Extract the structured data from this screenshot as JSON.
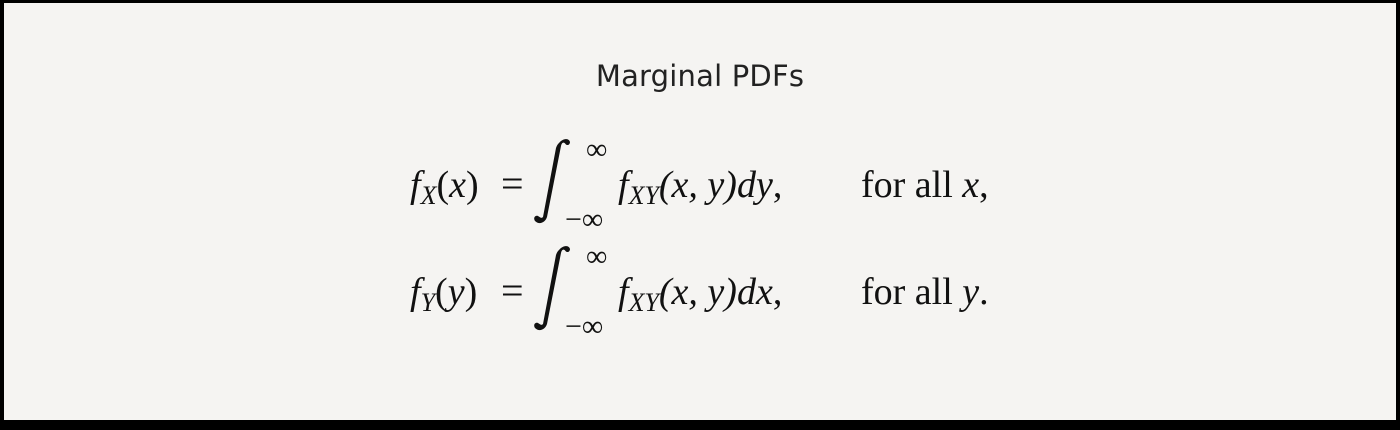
{
  "title": "Marginal PDFs",
  "equations": [
    {
      "lhs_f": "f",
      "lhs_sub": "X",
      "lhs_paren_open": "(",
      "lhs_var": "x",
      "lhs_paren_close": ")",
      "equals": "=",
      "upper_limit": "∞",
      "lower_limit": "−∞",
      "integrand_f": "f",
      "integrand_sub": "XY",
      "integrand_args": "(x, y)",
      "differential": "dy",
      "trailing_punct": ",",
      "condition_text": "for all ",
      "condition_var": "x",
      "condition_punct": ","
    },
    {
      "lhs_f": "f",
      "lhs_sub": "Y",
      "lhs_paren_open": "(",
      "lhs_var": "y",
      "lhs_paren_close": ")",
      "equals": "=",
      "upper_limit": "∞",
      "lower_limit": "−∞",
      "integrand_f": "f",
      "integrand_sub": "XY",
      "integrand_args": "(x, y)",
      "differential": "dx",
      "trailing_punct": ",",
      "condition_text": "for all ",
      "condition_var": "y",
      "condition_punct": "."
    }
  ]
}
